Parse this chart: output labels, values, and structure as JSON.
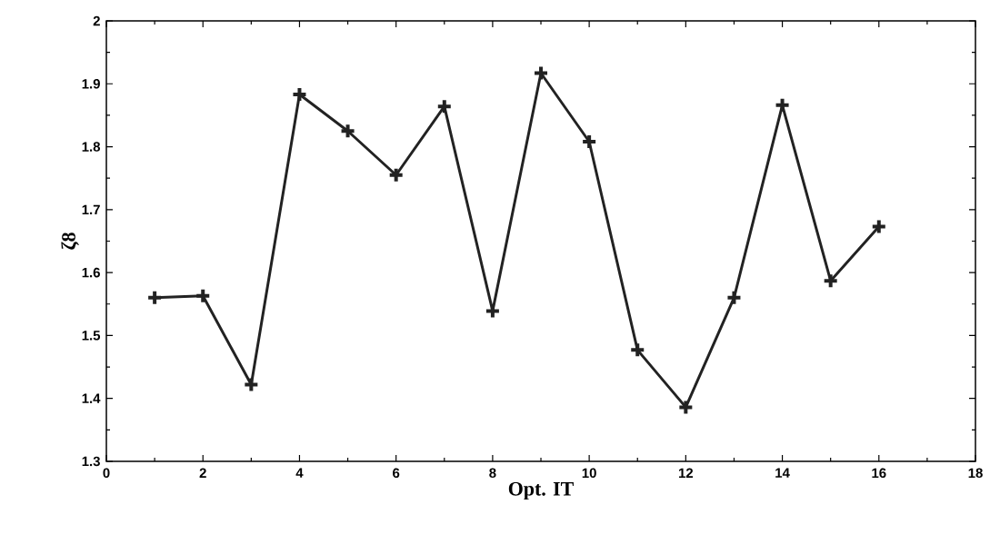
{
  "chart_data": {
    "type": "line",
    "xlabel": "Opt. IT",
    "ylabel": "ζ8",
    "x": [
      1,
      2,
      3,
      4,
      5,
      6,
      7,
      8,
      9,
      10,
      11,
      12,
      13,
      14,
      15,
      16
    ],
    "values": [
      1.56,
      1.563,
      1.422,
      1.883,
      1.825,
      1.755,
      1.864,
      1.539,
      1.917,
      1.808,
      1.477,
      1.386,
      1.56,
      1.866,
      1.587,
      1.673
    ],
    "color": "#222222",
    "marker": "cross",
    "line_style": "solid",
    "xlim": [
      0,
      18
    ],
    "xticks": [
      0,
      2,
      4,
      6,
      8,
      10,
      12,
      14,
      16,
      18
    ],
    "ylim": [
      1.3,
      2
    ],
    "yticks": [
      1.3,
      1.4,
      1.5,
      1.6,
      1.7,
      1.8,
      1.9,
      2
    ],
    "grid": false
  }
}
